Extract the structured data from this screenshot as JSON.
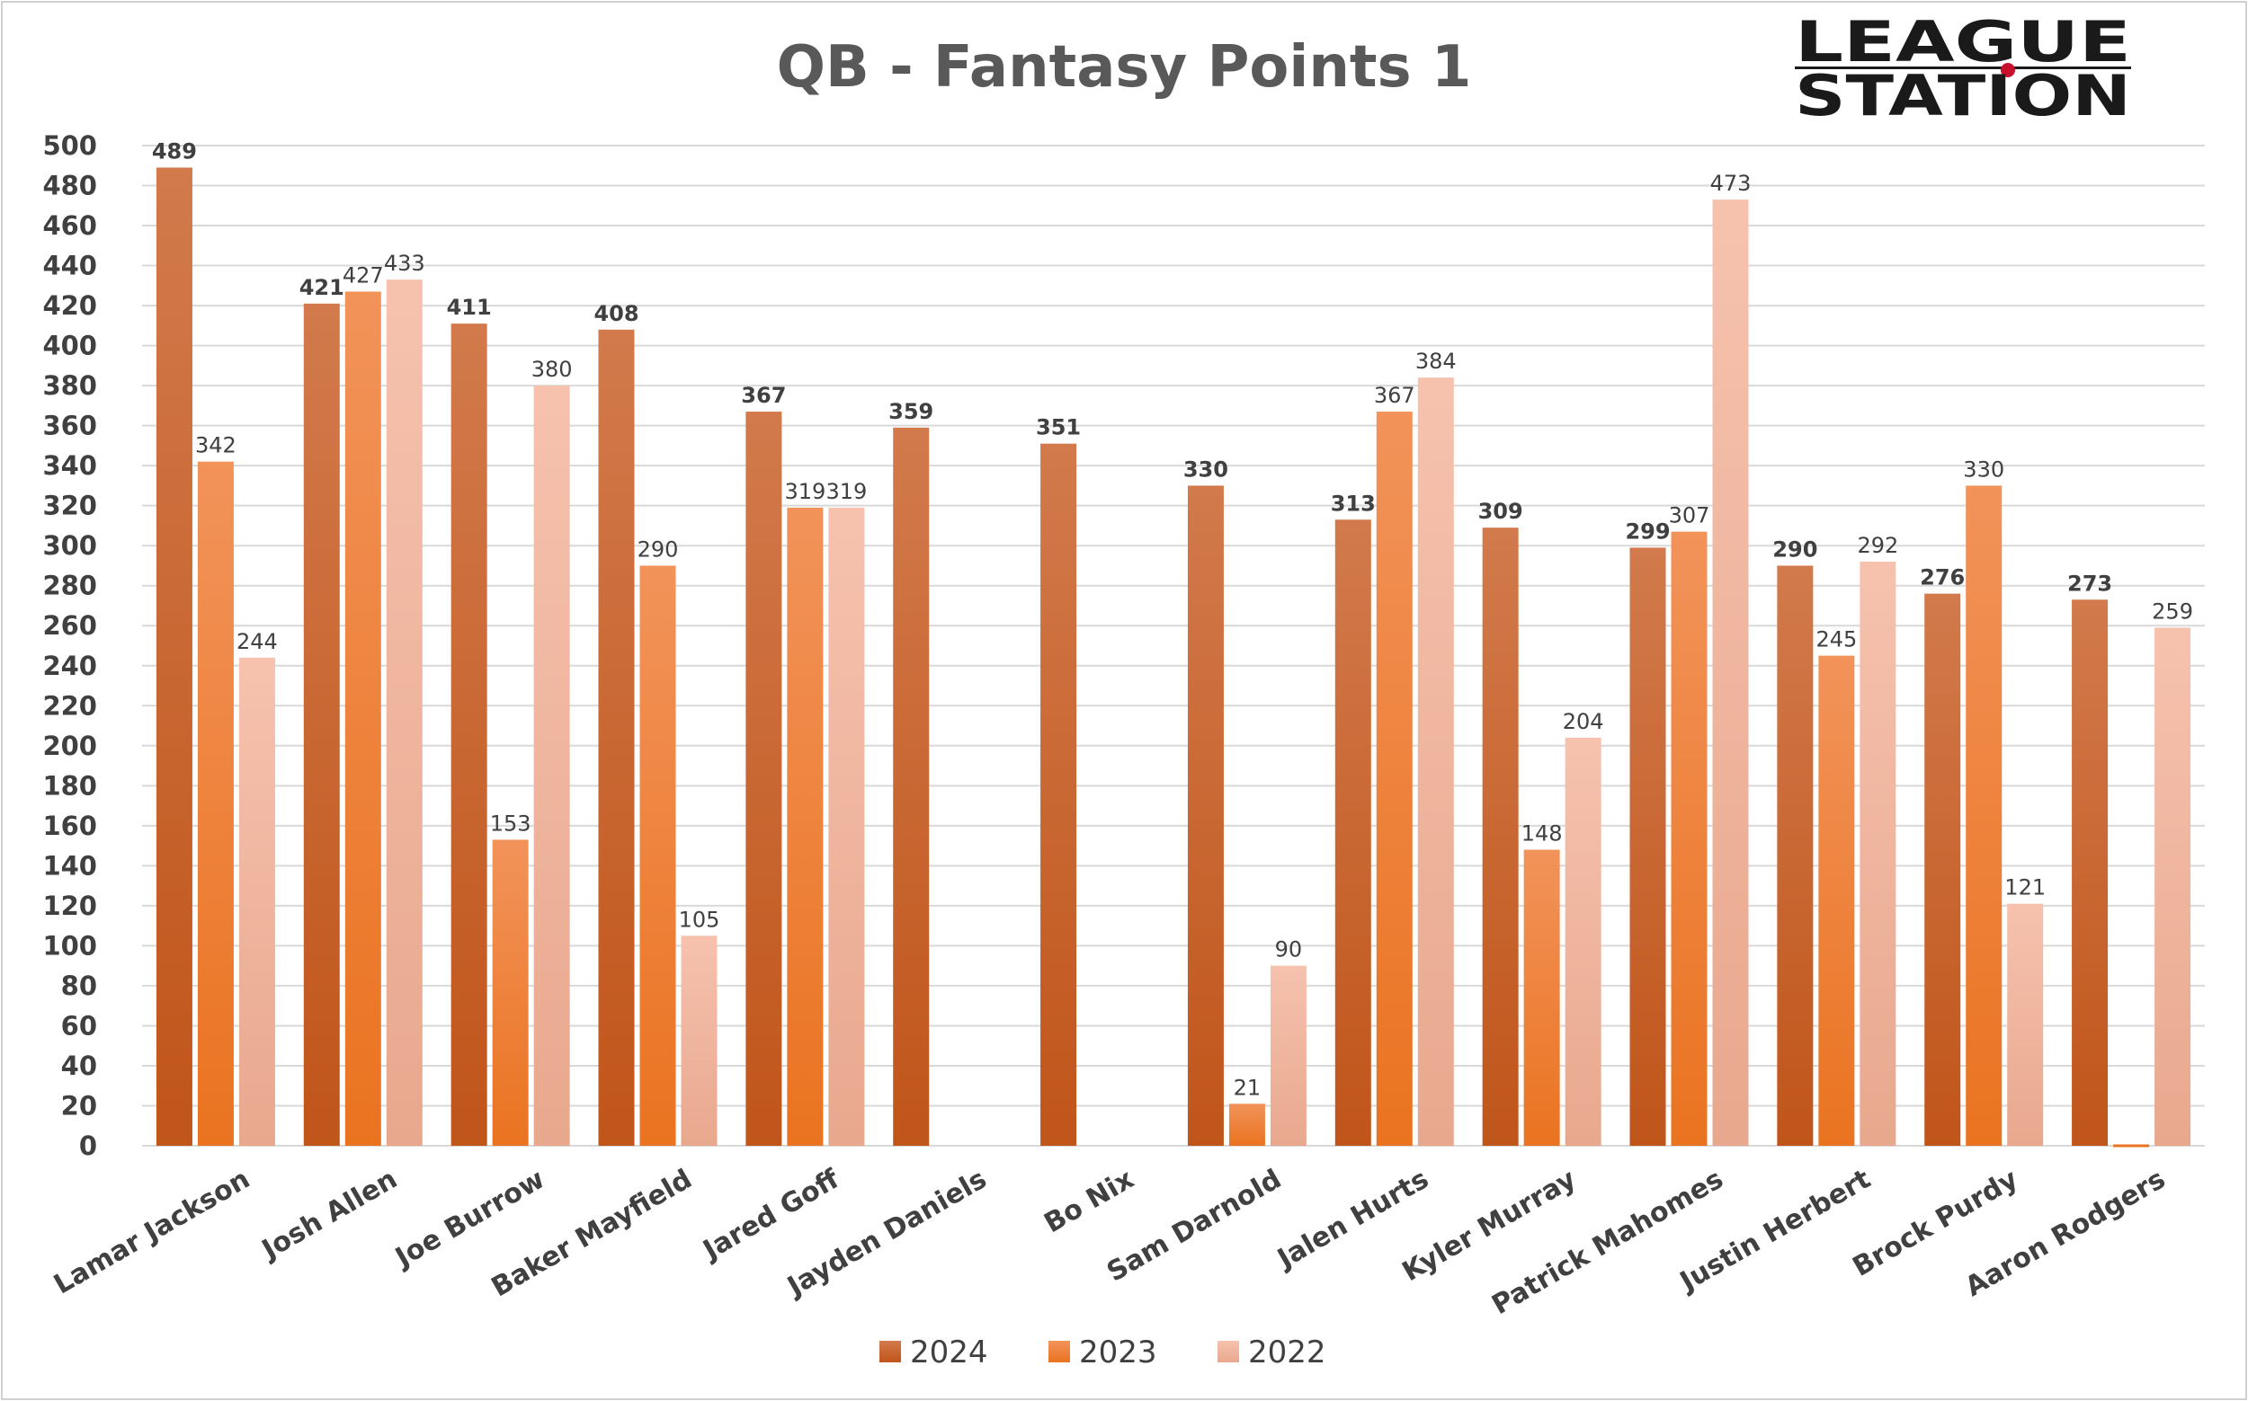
{
  "chart_data": {
    "type": "bar",
    "title": "QB - Fantasy Points 1",
    "xlabel": "",
    "ylabel": "",
    "ylim": [
      0,
      500
    ],
    "ytick_step": 20,
    "grid": true,
    "legend_position": "bottom",
    "categories": [
      "Lamar Jackson",
      "Josh Allen",
      "Joe Burrow",
      "Baker Mayfield",
      "Jared Goff",
      "Jayden Daniels",
      "Bo Nix",
      "Sam Darnold",
      "Jalen Hurts",
      "Kyler Murray",
      "Patrick Mahomes",
      "Justin Herbert",
      "Brock Purdy",
      "Aaron Rodgers"
    ],
    "series": [
      {
        "name": "2024",
        "values": [
          489,
          421,
          411,
          408,
          367,
          359,
          351,
          330,
          313,
          309,
          299,
          290,
          276,
          273
        ],
        "color_top": "#d27a4c",
        "color_bottom": "#c0551a",
        "label_weight": "bold"
      },
      {
        "name": "2023",
        "values": [
          342,
          427,
          153,
          290,
          319,
          null,
          null,
          21,
          367,
          148,
          307,
          245,
          330,
          0
        ],
        "color_top": "#f2935a",
        "color_bottom": "#ea7320",
        "label_weight": "normal"
      },
      {
        "name": "2022",
        "values": [
          244,
          433,
          380,
          105,
          319,
          null,
          null,
          90,
          384,
          204,
          473,
          292,
          121,
          259
        ],
        "color_top": "#f6c2ae",
        "color_bottom": "#e8a88e",
        "label_weight": "normal"
      }
    ]
  },
  "logo": {
    "line1": "LEAGUE",
    "line2": "STATION",
    "dot_color": "#c8102e"
  }
}
